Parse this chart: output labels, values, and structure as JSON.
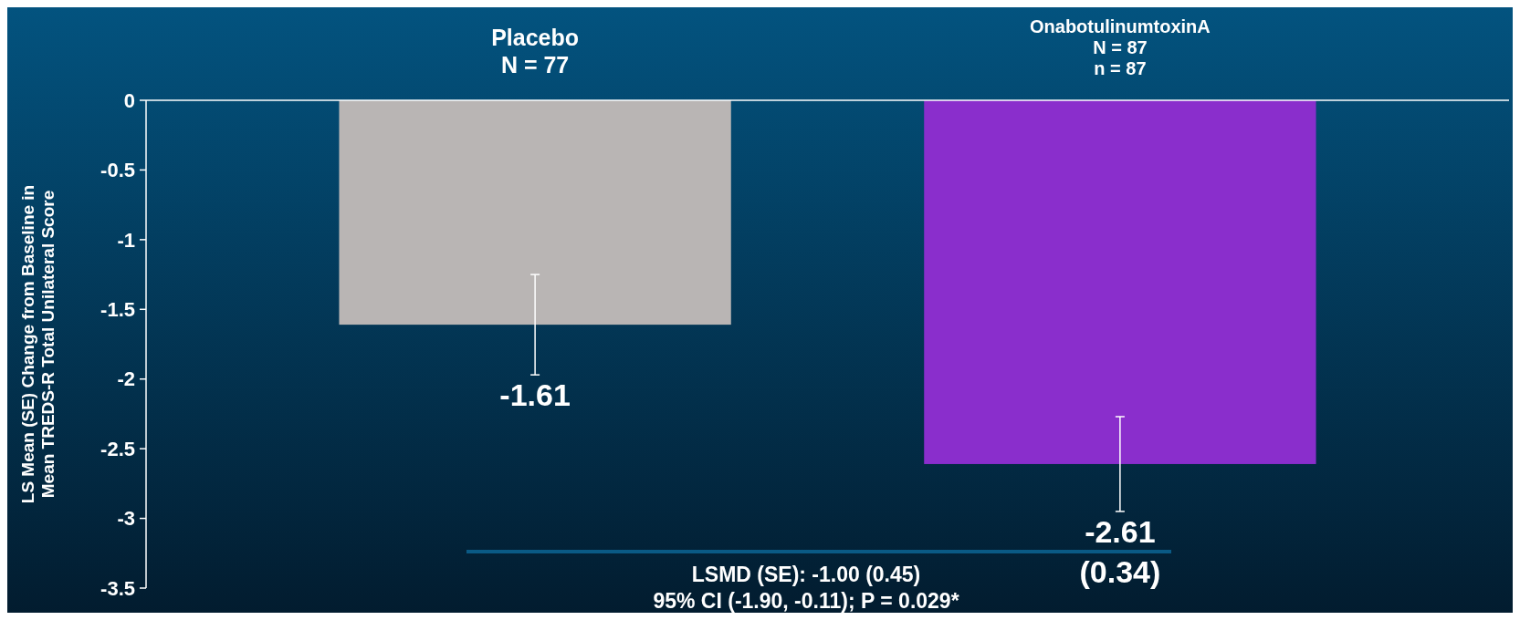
{
  "chart_data": {
    "type": "bar",
    "categories": [
      "Placebo\nN = 77",
      "OnabotulinumtoxinA\nN = 87\nn = 87"
    ],
    "values": [
      -1.61,
      -2.61
    ],
    "colors": [
      "#b9b5b4",
      "#8a2ecc"
    ],
    "errors": [
      0.36,
      0.34
    ],
    "value_labels": [
      "-1.61",
      "-2.61\n(0.34)"
    ],
    "ylabel": "LS Mean (SE) Change from Baseline in\nMean TREDS-R Total Unilateral Score",
    "ylim": [
      -3.5,
      0
    ],
    "yticks": [
      0,
      -0.5,
      -1,
      -1.5,
      -2,
      -2.5,
      -3,
      -3.5
    ],
    "annotations": [
      "LSMD (SE): -1.00 (0.45)\n95% CI (-1.90, -0.11); P = 0.029*"
    ],
    "grid": false
  }
}
